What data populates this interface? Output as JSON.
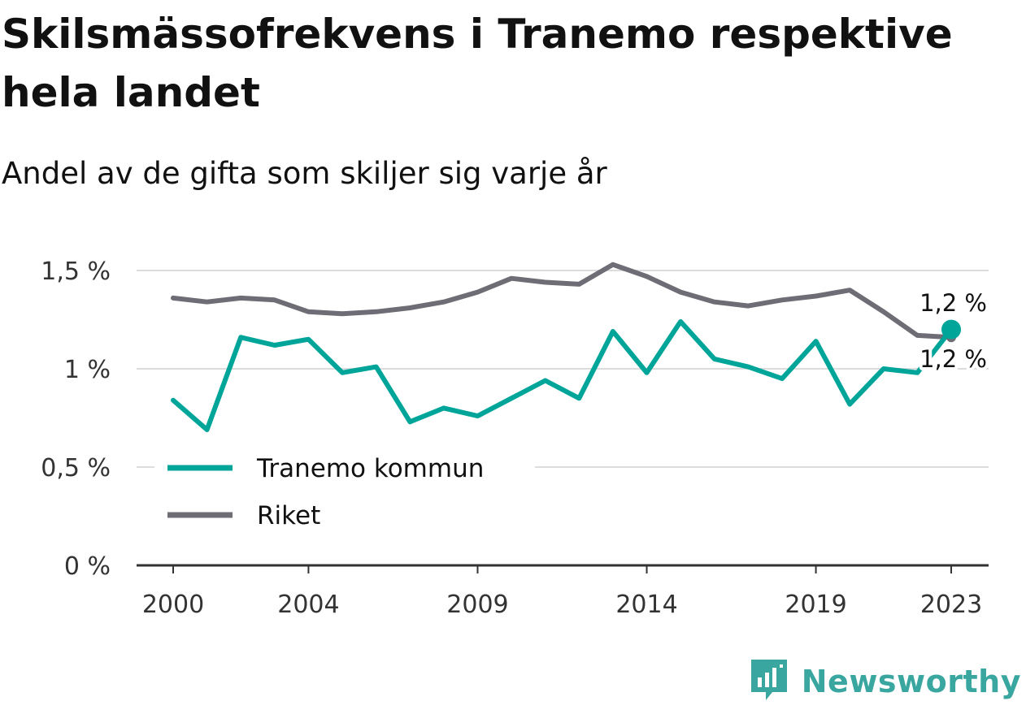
{
  "header": {
    "title": "Skilsmässofrekvens i Tranemo respektive hela landet",
    "subtitle": "Andel av de gifta som skiljer sig varje år"
  },
  "brand": {
    "name": "Newsworthy",
    "icon": "newsworthy-logo-icon",
    "color": "#3aa6a0"
  },
  "chart_data": {
    "type": "line",
    "x": [
      2000,
      2001,
      2002,
      2003,
      2004,
      2005,
      2006,
      2007,
      2008,
      2009,
      2010,
      2011,
      2012,
      2013,
      2014,
      2015,
      2016,
      2017,
      2018,
      2019,
      2020,
      2021,
      2022,
      2023
    ],
    "series": [
      {
        "name": "Tranemo kommun",
        "color": "#00a59a",
        "values": [
          0.84,
          0.69,
          1.16,
          1.12,
          1.15,
          0.98,
          1.01,
          0.73,
          0.8,
          0.76,
          0.85,
          0.94,
          0.85,
          1.19,
          0.98,
          1.24,
          1.05,
          1.01,
          0.95,
          1.14,
          0.82,
          1.0,
          0.98,
          1.2
        ],
        "end_label": "1,2 %"
      },
      {
        "name": "Riket",
        "color": "#6e6d75",
        "values": [
          1.36,
          1.34,
          1.36,
          1.35,
          1.29,
          1.28,
          1.29,
          1.31,
          1.34,
          1.39,
          1.46,
          1.44,
          1.43,
          1.53,
          1.47,
          1.39,
          1.34,
          1.32,
          1.35,
          1.37,
          1.4,
          1.29,
          1.17,
          1.16
        ],
        "end_label": "1,2 %"
      }
    ],
    "x_ticks": [
      2000,
      2004,
      2009,
      2014,
      2019,
      2023
    ],
    "x_tick_labels": [
      "2000",
      "2004",
      "2009",
      "2014",
      "2019",
      "2023"
    ],
    "y_ticks": [
      0,
      0.5,
      1,
      1.5
    ],
    "y_tick_labels": [
      "0 %",
      "0,5 %",
      "1 %",
      "1,5 %"
    ],
    "ylim": [
      0,
      1.5
    ],
    "grid": true,
    "legend_position": "lower-left",
    "xlabel": "",
    "ylabel": ""
  }
}
